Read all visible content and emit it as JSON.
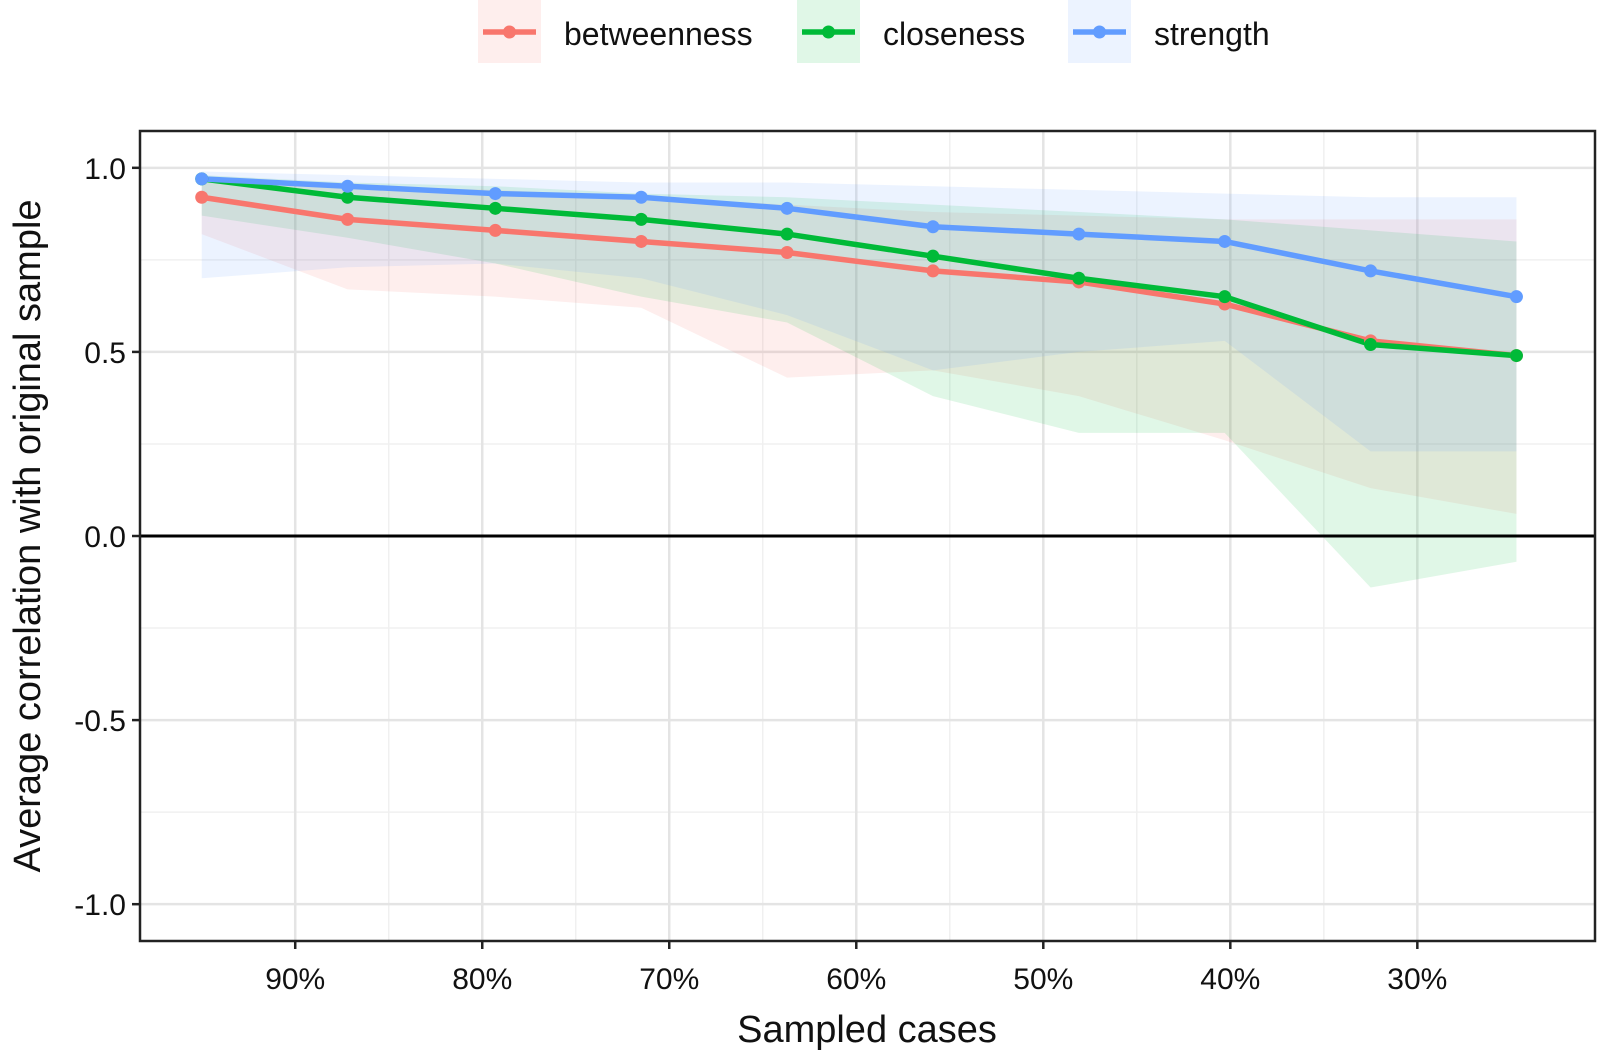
{
  "chart_data": {
    "type": "line",
    "title": "",
    "xlabel": "Sampled cases",
    "ylabel": "Average correlation with original sample",
    "xlim": [
      98.3,
      20.5
    ],
    "ylim": [
      -1.1,
      1.1
    ],
    "x_ticks": [
      90,
      80,
      70,
      60,
      50,
      40,
      30
    ],
    "x_tick_labels": [
      "90%",
      "80%",
      "70%",
      "60%",
      "50%",
      "40%",
      "30%"
    ],
    "y_ticks": [
      1.0,
      0.5,
      0.0,
      -0.5,
      -1.0
    ],
    "y_tick_labels": [
      "1.0",
      "0.5",
      "0.0",
      "-0.5",
      "-1.0"
    ],
    "reference_line": 0,
    "grid": true,
    "legend_position": "top",
    "x": [
      95,
      87.2,
      79.3,
      71.5,
      63.7,
      55.9,
      48.1,
      40.3,
      32.5,
      24.7
    ],
    "series": [
      {
        "name": "betweenness",
        "color": "#F8766D",
        "values": [
          0.92,
          0.86,
          0.83,
          0.8,
          0.77,
          0.72,
          0.69,
          0.63,
          0.53,
          0.49
        ],
        "band_upper": [
          0.97,
          0.95,
          0.94,
          0.92,
          0.9,
          0.88,
          0.87,
          0.86,
          0.86,
          0.86
        ],
        "band_lower": [
          0.82,
          0.67,
          0.65,
          0.62,
          0.43,
          0.45,
          0.38,
          0.26,
          0.13,
          0.06
        ]
      },
      {
        "name": "closeness",
        "color": "#00BA38",
        "values": [
          0.97,
          0.92,
          0.89,
          0.86,
          0.82,
          0.76,
          0.7,
          0.65,
          0.52,
          0.49
        ],
        "band_upper": [
          0.98,
          0.96,
          0.95,
          0.93,
          0.92,
          0.9,
          0.88,
          0.86,
          0.83,
          0.8
        ],
        "band_lower": [
          0.87,
          0.81,
          0.74,
          0.65,
          0.58,
          0.38,
          0.28,
          0.28,
          -0.14,
          -0.07
        ]
      },
      {
        "name": "strength",
        "color": "#619CFF",
        "values": [
          0.97,
          0.95,
          0.93,
          0.92,
          0.89,
          0.84,
          0.82,
          0.8,
          0.72,
          0.65
        ],
        "band_upper": [
          0.99,
          0.98,
          0.97,
          0.96,
          0.96,
          0.95,
          0.94,
          0.93,
          0.92,
          0.92
        ],
        "band_lower": [
          0.7,
          0.73,
          0.74,
          0.7,
          0.6,
          0.45,
          0.5,
          0.53,
          0.23,
          0.23
        ]
      }
    ]
  }
}
